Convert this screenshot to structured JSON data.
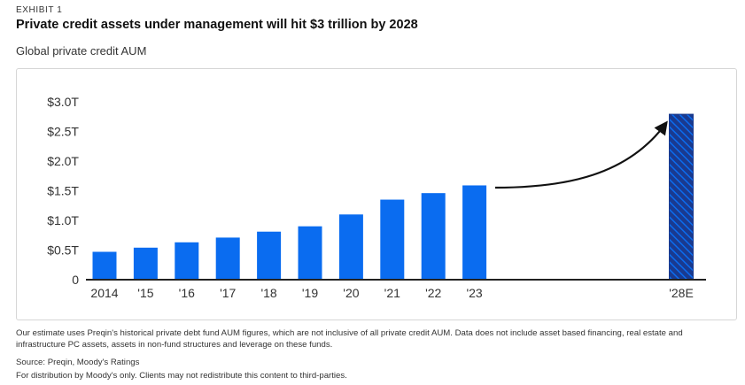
{
  "exhibit": "EXHIBIT 1",
  "title": "Private credit assets under management will hit $3 trillion by 2028",
  "subtitle": "Global private credit AUM",
  "footnotes": {
    "note": "Our estimate uses Preqin's historical private debt fund AUM figures, which are not inclusive of all private credit AUM. Data does not include asset based financing, real estate and infrastructure PC assets, assets in non-fund structures and leverage on these funds.",
    "source": "Source: Preqin, Moody's Ratings",
    "distribution": "For distribution by Moody's only. Clients may not redistribute this content to third-parties."
  },
  "colors": {
    "bar": "#0a6cf0",
    "estimate_bar": "#1a3a8f",
    "estimate_hatch": "#0a6cf0",
    "axis": "#222222"
  },
  "chart_data": {
    "type": "bar",
    "categories": [
      "2014",
      "'15",
      "'16",
      "'17",
      "'18",
      "'19",
      "'20",
      "'21",
      "'22",
      "'23",
      "'28E"
    ],
    "values": [
      0.47,
      0.54,
      0.63,
      0.71,
      0.81,
      0.9,
      1.1,
      1.35,
      1.46,
      1.59,
      2.79
    ],
    "estimate": [
      false,
      false,
      false,
      false,
      false,
      false,
      false,
      false,
      false,
      false,
      true
    ],
    "unit": "trillion USD",
    "yticks": [
      0,
      0.5,
      1.0,
      1.5,
      2.0,
      2.5,
      3.0
    ],
    "ytick_labels": [
      "0",
      "$0.5T",
      "$1.0T",
      "$1.5T",
      "$2.0T",
      "$2.5T",
      "$3.0T"
    ],
    "ylim": [
      0,
      3.0
    ],
    "grid": false,
    "annotation": "curved arrow from 2023 bar to 2028E bar"
  }
}
